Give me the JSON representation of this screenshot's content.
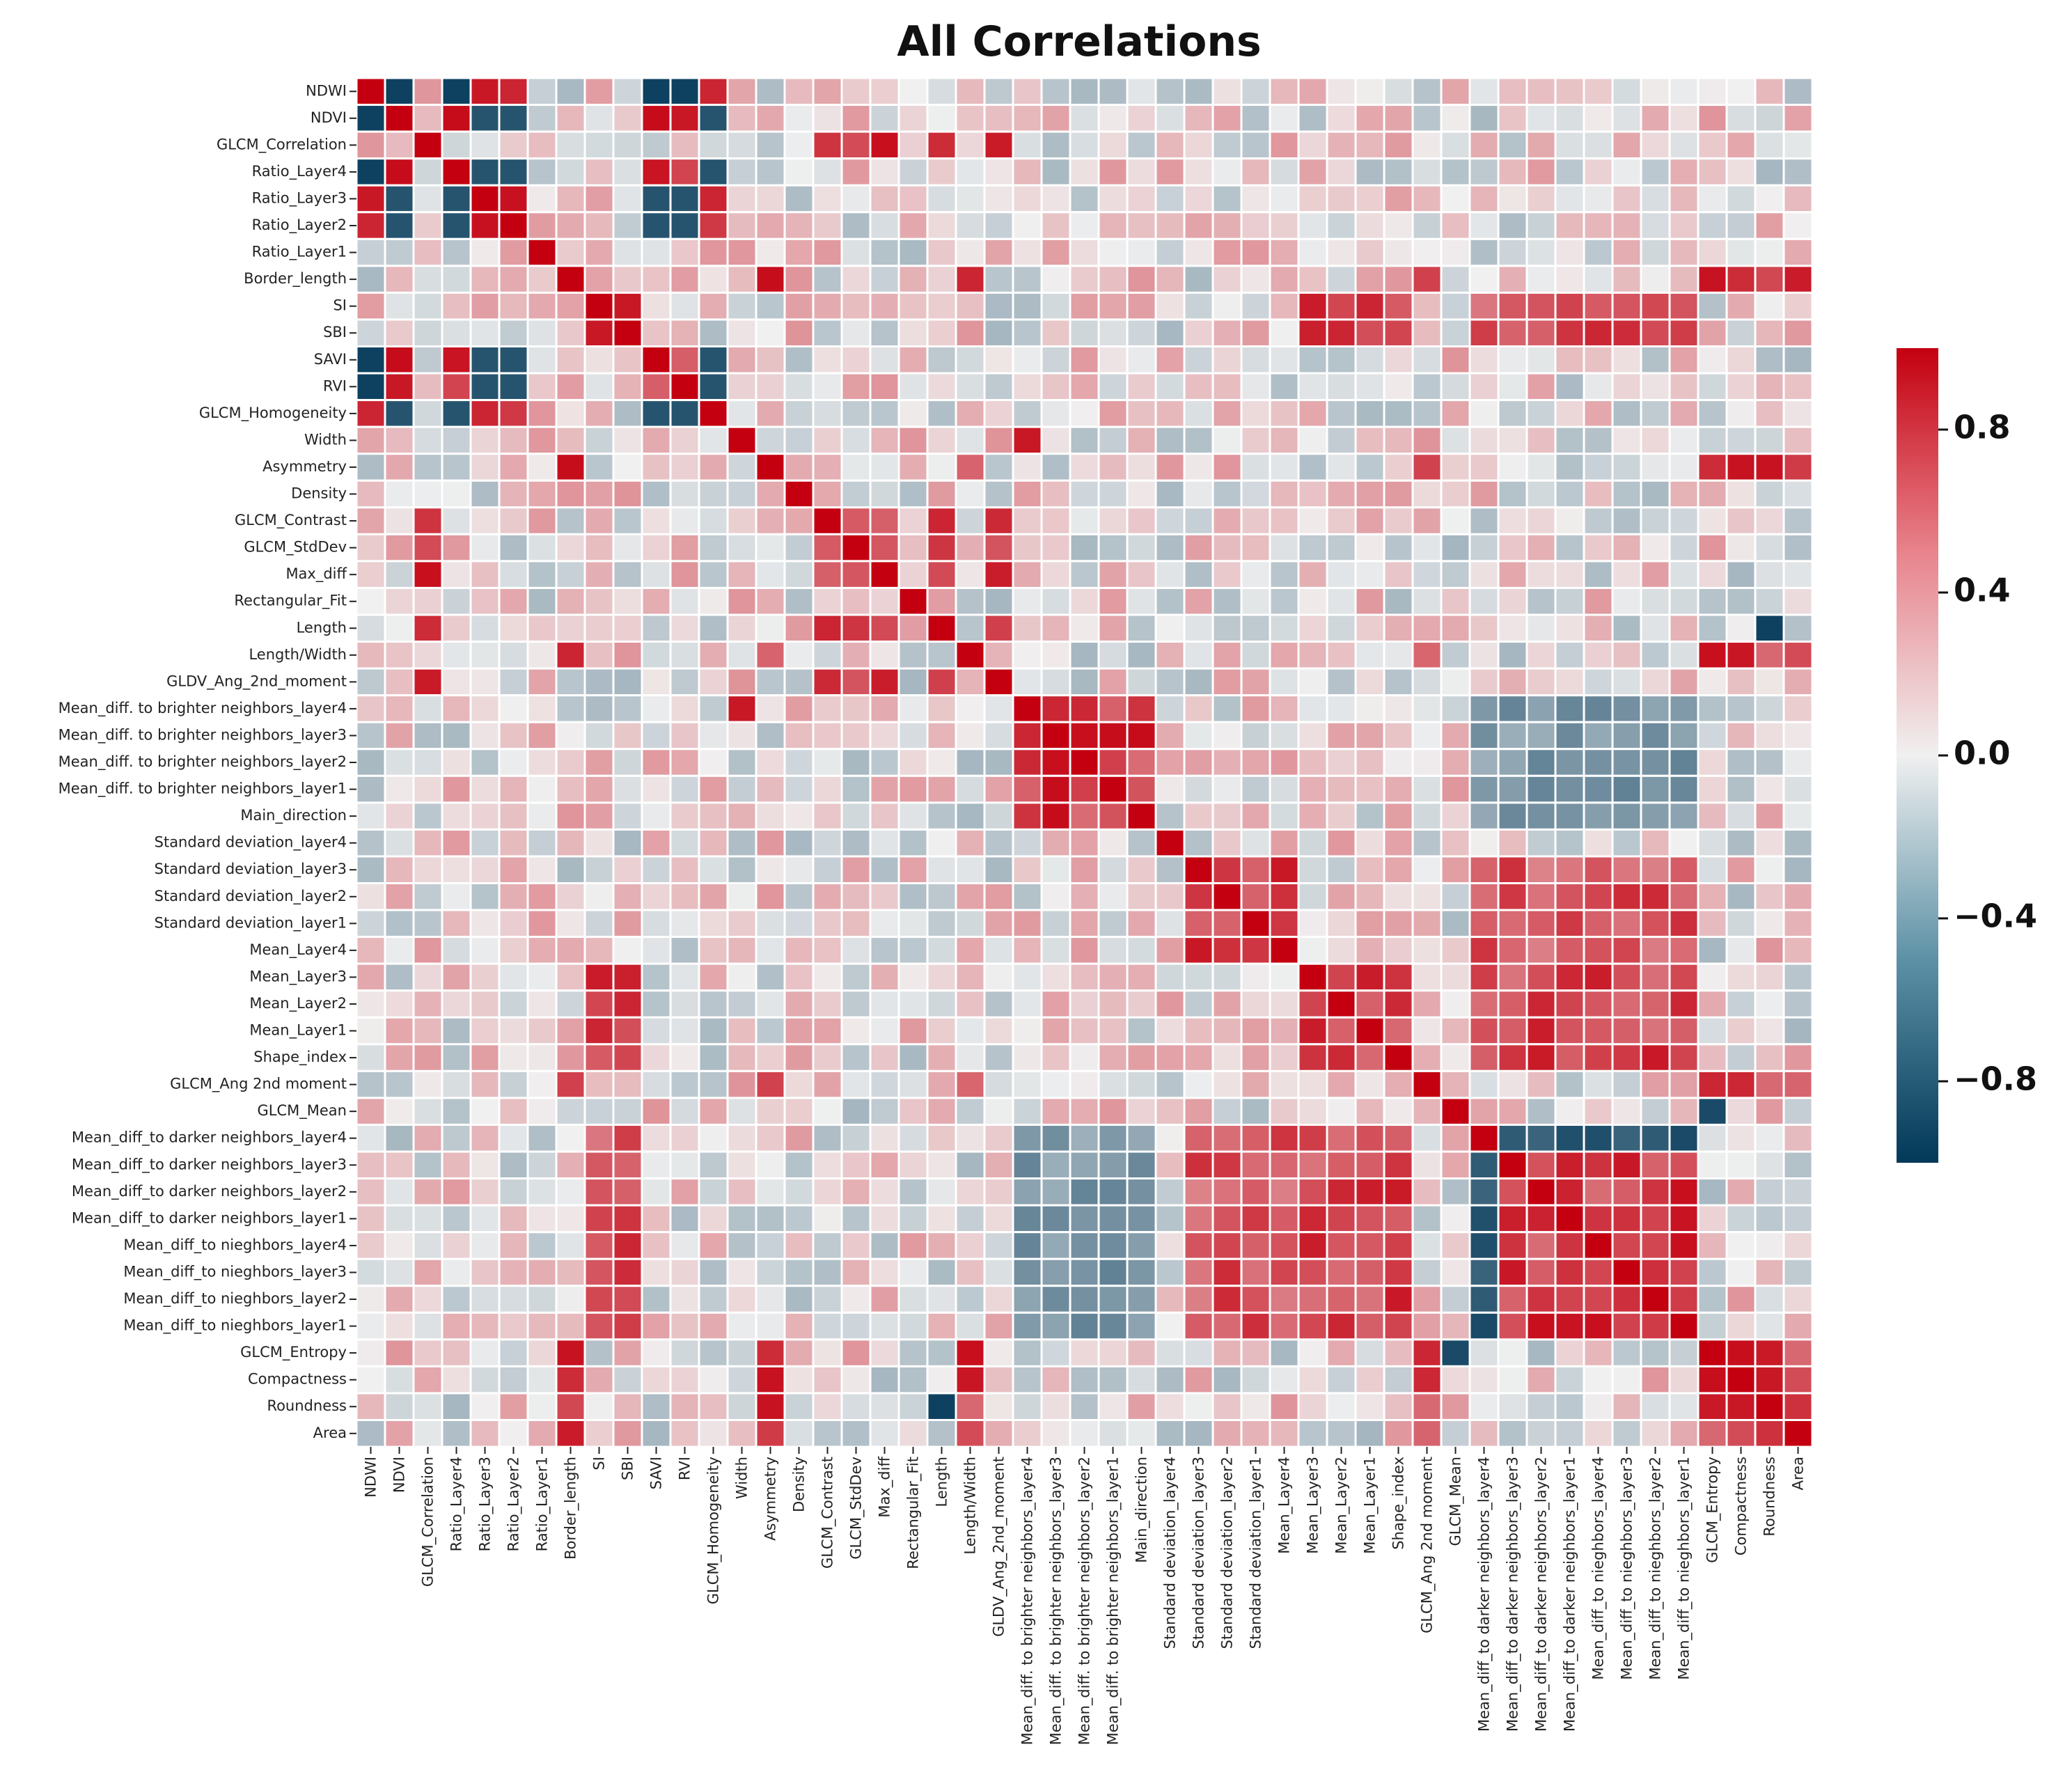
{
  "chart_data": {
    "type": "heatmap",
    "title": "All Correlations",
    "labels": [
      "NDWI",
      "NDVI",
      "GLCM_Correlation",
      "Ratio_Layer4",
      "Ratio_Layer3",
      "Ratio_Layer2",
      "Ratio_Layer1",
      "Border_length",
      "SI",
      "SBI",
      "SAVI",
      "RVI",
      "GLCM_Homogeneity",
      "Width",
      "Asymmetry",
      "Density",
      "GLCM_Contrast",
      "GLCM_StdDev",
      "Max_diff",
      "Rectangular_Fit",
      "Length",
      "Length/Width",
      "GLDV_Ang_2nd_moment",
      "Mean_diff. to brighter neighbors_layer4",
      "Mean_diff. to brighter neighbors_layer3",
      "Mean_diff. to brighter neighbors_layer2",
      "Mean_diff. to brighter neighbors_layer1",
      "Main_direction",
      "Standard deviation_layer4",
      "Standard deviation_layer3",
      "Standard deviation_layer2",
      "Standard deviation_layer1",
      "Mean_Layer4",
      "Mean_Layer3",
      "Mean_Layer2",
      "Mean_Layer1",
      "Shape_index",
      "GLCM_Ang 2nd moment",
      "GLCM_Mean",
      "Mean_diff_to darker neighbors_layer4",
      "Mean_diff_to darker neighbors_layer3",
      "Mean_diff_to darker neighbors_layer2",
      "Mean_diff_to darker neighbors_layer1",
      "Mean_diff_to nieghbors_layer4",
      "Mean_diff_to nieghbors_layer3",
      "Mean_diff_to nieghbors_layer2",
      "Mean_diff_to nieghbors_layer1",
      "GLCM_Entropy",
      "Compactness",
      "Roundness",
      "Area"
    ],
    "groups": {
      "water_veg_indices": [
        0,
        1,
        3,
        4,
        5,
        10,
        11,
        12
      ],
      "brightness": [
        8,
        9,
        33,
        34,
        35,
        36
      ],
      "brighter_neighbors": [
        23,
        24,
        25,
        26,
        27
      ],
      "std_dev": [
        29,
        30,
        31,
        32
      ],
      "darker_and_neighbors": [
        39,
        40,
        41,
        42,
        43,
        44,
        45,
        46
      ],
      "shape_size": [
        7,
        14,
        21,
        37,
        47,
        48,
        49,
        50
      ],
      "texture_contrast": [
        16,
        17,
        18,
        20,
        22,
        2
      ]
    },
    "notable_correlations": [
      {
        "a": "NDWI",
        "b": "NDVI",
        "r": -0.95
      },
      {
        "a": "NDWI",
        "b": "Ratio_Layer4",
        "r": -0.95
      },
      {
        "a": "NDWI",
        "b": "Ratio_Layer3",
        "r": 0.9
      },
      {
        "a": "NDWI",
        "b": "Ratio_Layer2",
        "r": 0.85
      },
      {
        "a": "NDWI",
        "b": "SAVI",
        "r": -0.95
      },
      {
        "a": "NDWI",
        "b": "RVI",
        "r": -0.95
      },
      {
        "a": "NDWI",
        "b": "GLCM_Homogeneity",
        "r": 0.85
      },
      {
        "a": "NDVI",
        "b": "Ratio_Layer4",
        "r": 0.95
      },
      {
        "a": "NDVI",
        "b": "SAVI",
        "r": 0.95
      },
      {
        "a": "NDVI",
        "b": "RVI",
        "r": 0.9
      },
      {
        "a": "SI",
        "b": "SBI",
        "r": 0.9
      },
      {
        "a": "SI",
        "b": "Mean_Layer1",
        "r": 0.85
      },
      {
        "a": "Width",
        "b": "Mean_diff. to brighter neighbors_layer4",
        "r": 0.9
      },
      {
        "a": "Border_length",
        "b": "Length/Width",
        "r": 0.85
      },
      {
        "a": "Length",
        "b": "GLCM_Contrast",
        "r": 0.85
      },
      {
        "a": "Length",
        "b": "Roundness",
        "r": -0.95
      },
      {
        "a": "Compactness",
        "b": "Roundness",
        "r": 0.9
      },
      {
        "a": "GLCM_Mean",
        "b": "GLCM_Entropy",
        "r": -0.9
      },
      {
        "a": "Mean_diff_to darker neighbors_layer4",
        "b": "Mean_diff_to nieghbors_layer1",
        "r": -0.9
      },
      {
        "a": "Standard deviation_layer3",
        "b": "Mean_Layer4",
        "r": 0.9
      }
    ],
    "colorbar": {
      "min": -1.0,
      "max": 1.0,
      "ticks": [
        0.8,
        0.4,
        0.0,
        -0.4,
        -0.8
      ],
      "tick_labels": [
        "0.8",
        "0.4",
        "0.0",
        "−0.4",
        "−0.8"
      ],
      "colors": {
        "neg": "#023858",
        "mid": "#f0f0f0",
        "pos": "#c40010"
      }
    },
    "grid": true,
    "legend": "colorbar-right"
  }
}
